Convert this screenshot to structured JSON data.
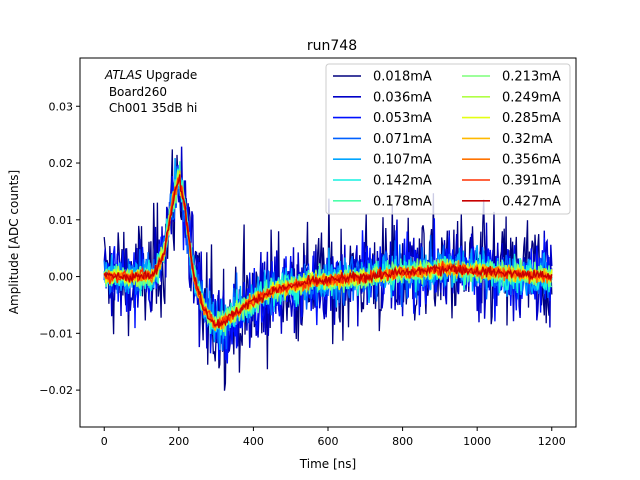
{
  "chart_data": {
    "type": "line",
    "title": "run748",
    "xlabel": "Time [ns]",
    "ylabel": "Amplitude [ADC counts]",
    "xlim": [
      -65,
      1265
    ],
    "ylim": [
      -0.0265,
      0.0385
    ],
    "xticks": [
      0,
      200,
      400,
      600,
      800,
      1000,
      1200
    ],
    "xtick_labels": [
      "0",
      "200",
      "400",
      "600",
      "800",
      "1000",
      "1200"
    ],
    "yticks": [
      -0.02,
      -0.01,
      0.0,
      0.01,
      0.02,
      0.03
    ],
    "ytick_labels": [
      "−0.02",
      "−0.01",
      "0.00",
      "0.01",
      "0.02",
      "0.03"
    ],
    "annotation": {
      "line1_italic": "ATLAS",
      "line1_rest": " Upgrade",
      "line2": " Board260",
      "line3": " Ch001 35dB hi"
    },
    "legend_position": "top-right",
    "legend_columns": 2,
    "pulse_shape": {
      "t": [
        0,
        130,
        160,
        185,
        200,
        215,
        240,
        270,
        300,
        330,
        380,
        450,
        550,
        700,
        850,
        920,
        1000,
        1100,
        1200
      ],
      "v": [
        0.0,
        0.0,
        0.004,
        0.014,
        0.0175,
        0.013,
        0.0,
        -0.006,
        -0.0085,
        -0.0075,
        -0.005,
        -0.0025,
        -0.001,
        0.0,
        0.001,
        0.0015,
        0.001,
        0.0005,
        0.0
      ]
    },
    "series": [
      {
        "name": "0.018mA",
        "color": "#00007f",
        "noise": 0.0082
      },
      {
        "name": "0.036mA",
        "color": "#0000c8",
        "noise": 0.0058
      },
      {
        "name": "0.053mA",
        "color": "#0010ff",
        "noise": 0.0045
      },
      {
        "name": "0.071mA",
        "color": "#0060ff",
        "noise": 0.0036
      },
      {
        "name": "0.107mA",
        "color": "#00a4ff",
        "noise": 0.0028
      },
      {
        "name": "0.142mA",
        "color": "#16f0e0",
        "noise": 0.0022
      },
      {
        "name": "0.178mA",
        "color": "#4dffaa",
        "noise": 0.0018
      },
      {
        "name": "0.213mA",
        "color": "#7dff7a",
        "noise": 0.0015
      },
      {
        "name": "0.249mA",
        "color": "#b0ff46",
        "noise": 0.0013
      },
      {
        "name": "0.285mA",
        "color": "#e4ff13",
        "noise": 0.0011
      },
      {
        "name": "0.32mA",
        "color": "#ffb900",
        "noise": 0.001
      },
      {
        "name": "0.356mA",
        "color": "#ff7300",
        "noise": 0.0009
      },
      {
        "name": "0.391mA",
        "color": "#ff3000",
        "noise": 0.0008
      },
      {
        "name": "0.427mA",
        "color": "#c80000",
        "noise": 0.0007
      }
    ]
  }
}
